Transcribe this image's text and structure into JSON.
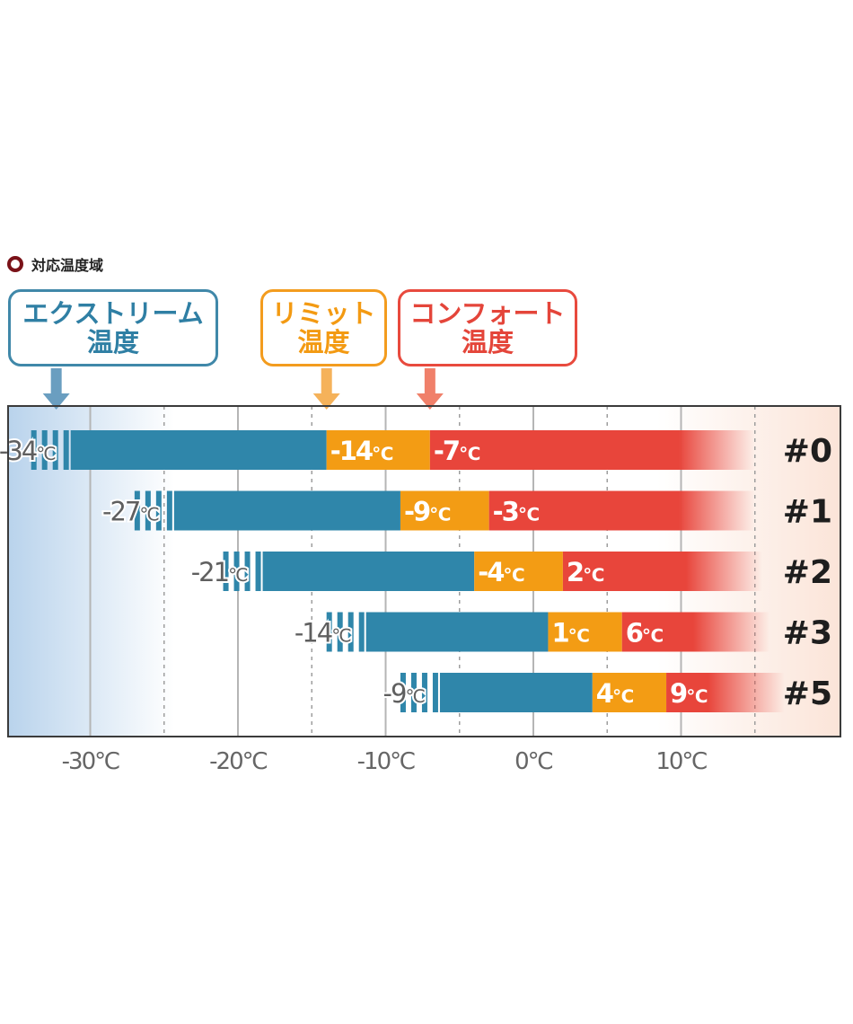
{
  "heading": {
    "text": "対応温度域",
    "bullet_color": "#7a1218"
  },
  "callouts": [
    {
      "key": "extreme",
      "line1": "エクストリーム",
      "line2": "温度",
      "color": "#3f88a8",
      "arrow_color": "#6a9ec0"
    },
    {
      "key": "limit",
      "line1": "リミット",
      "line2": "温度",
      "color": "#f39c1e",
      "arrow_color": "#f5b25a"
    },
    {
      "key": "comfort",
      "line1": "コンフォート",
      "line2": "温度",
      "color": "#e84a3e",
      "arrow_color": "#f0806a"
    }
  ],
  "colors": {
    "extreme": "#2f86aa",
    "limit": "#f39c14",
    "comfort": "#e8453b",
    "cold_bg": "#b9d3ec",
    "warm_bg": "#fbe4d8",
    "axis_text": "#666666"
  },
  "chart_data": {
    "type": "bar",
    "subtype": "floating-range",
    "unit": "℃",
    "xlim": [
      -36,
      20
    ],
    "xticks": [
      {
        "value": -30,
        "label": "-30℃"
      },
      {
        "value": -20,
        "label": "-20℃"
      },
      {
        "value": -10,
        "label": "-10℃"
      },
      {
        "value": 0,
        "label": "0℃"
      },
      {
        "value": 10,
        "label": "10℃"
      }
    ],
    "minor_grid": [
      -25,
      -15,
      -5,
      5,
      15
    ],
    "categories": [
      "#0",
      "#1",
      "#2",
      "#3",
      "#5"
    ],
    "series": [
      {
        "name": "エクストリーム温度",
        "values": [
          -34,
          -27,
          -21,
          -14,
          -9
        ]
      },
      {
        "name": "リミット温度",
        "values": [
          -14,
          -9,
          -4,
          1,
          4
        ]
      },
      {
        "name": "コンフォート温度",
        "values": [
          -7,
          -3,
          2,
          6,
          9
        ]
      }
    ],
    "labels": {
      "extreme": [
        "-34",
        "-27",
        "-21",
        "-14",
        "-9"
      ],
      "limit": [
        "-14",
        "-9",
        "-4",
        "1",
        "4"
      ],
      "comfort": [
        "-7",
        "-3",
        "2",
        "6",
        "9"
      ]
    },
    "bar_end": [
      15,
      15,
      15.5,
      16,
      17
    ]
  }
}
